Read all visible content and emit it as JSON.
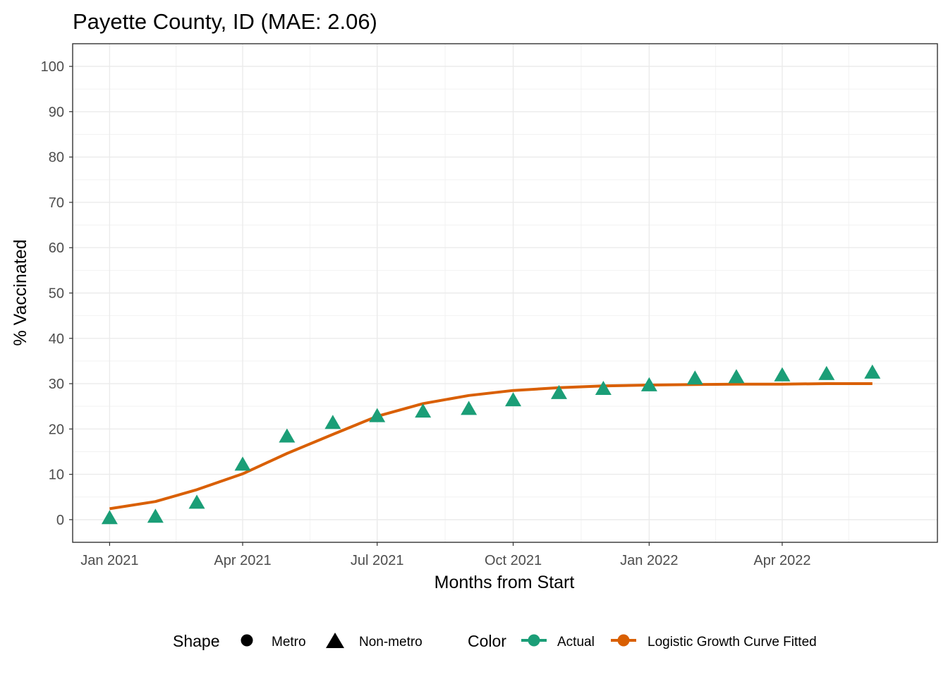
{
  "chart_data": {
    "type": "line",
    "title": "Payette County, ID (MAE: 2.06)",
    "xlabel": "Months from Start",
    "ylabel": "% Vaccinated",
    "x_tick_labels": [
      "Jan 2021",
      "Apr 2021",
      "Jul 2021",
      "Oct 2021",
      "Jan 2022",
      "Apr 2022"
    ],
    "x_tick_dates": [
      "2021-01-01",
      "2021-04-01",
      "2021-07-01",
      "2021-10-01",
      "2022-01-01",
      "2022-04-01"
    ],
    "y_ticks": [
      0,
      10,
      20,
      30,
      40,
      50,
      60,
      70,
      80,
      90,
      100
    ],
    "xlim": [
      "2020-12-07",
      "2022-07-15"
    ],
    "ylim": [
      -5,
      105
    ],
    "grid": true,
    "legend_position": "bottom",
    "series": [
      {
        "name": "Actual",
        "kind": "points",
        "shape": "Non-metro",
        "color": "#1b9e77",
        "x": [
          "2021-01-01",
          "2021-02-01",
          "2021-03-01",
          "2021-04-01",
          "2021-05-01",
          "2021-06-01",
          "2021-07-01",
          "2021-08-01",
          "2021-09-01",
          "2021-10-01",
          "2021-11-01",
          "2021-12-01",
          "2022-01-01",
          "2022-02-01",
          "2022-03-01",
          "2022-04-01",
          "2022-05-01",
          "2022-06-01"
        ],
        "y": [
          0.1,
          0.4,
          3.5,
          11.9,
          18.1,
          21.1,
          22.6,
          23.6,
          24.2,
          26.1,
          27.7,
          28.6,
          29.4,
          30.9,
          31.2,
          31.6,
          31.9,
          32.2
        ]
      },
      {
        "name": "Logistic Growth Curve Fitted",
        "kind": "line",
        "color": "#d95f02",
        "x": [
          "2021-01-01",
          "2021-02-01",
          "2021-03-01",
          "2021-04-01",
          "2021-05-01",
          "2021-06-01",
          "2021-07-01",
          "2021-08-01",
          "2021-09-01",
          "2021-10-01",
          "2021-11-01",
          "2021-12-01",
          "2022-01-01",
          "2022-02-01",
          "2022-03-01",
          "2022-04-01",
          "2022-05-01",
          "2022-06-01"
        ],
        "y": [
          2.4,
          4.0,
          6.6,
          10.1,
          14.6,
          18.8,
          22.8,
          25.6,
          27.4,
          28.5,
          29.1,
          29.5,
          29.7,
          29.8,
          29.9,
          29.9,
          30.0,
          30.0
        ]
      }
    ],
    "legend": {
      "shape_title": "Shape",
      "shape_entries": [
        "Metro",
        "Non-metro"
      ],
      "color_title": "Color",
      "color_entries": [
        "Actual",
        "Logistic Growth Curve Fitted"
      ]
    }
  }
}
